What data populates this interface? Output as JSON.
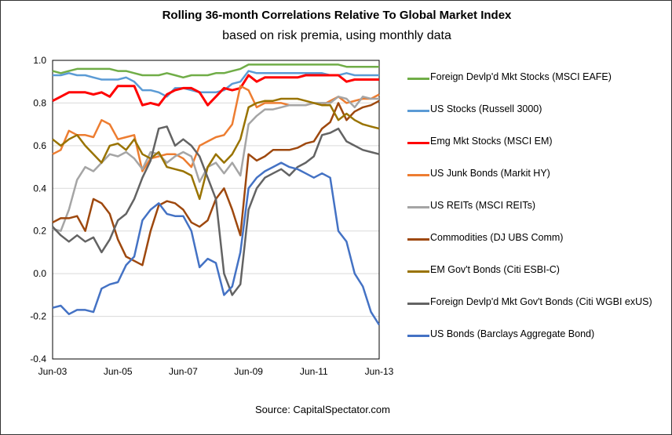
{
  "chart_data": {
    "type": "line",
    "title": "Rolling 36-month Correlations Relative To Global Market Index",
    "subtitle": "based on risk premia, using monthly data",
    "source": "Source: CapitalSpectator.com",
    "ylim": [
      -0.4,
      1.0
    ],
    "yticks": [
      "1.0",
      "0.8",
      "0.6",
      "0.4",
      "0.2",
      "0.0",
      "-0.2",
      "-0.4"
    ],
    "ytick_values": [
      1.0,
      0.8,
      0.6,
      0.4,
      0.2,
      0.0,
      -0.2,
      -0.4
    ],
    "xticks": [
      "Jun-03",
      "Jun-05",
      "Jun-07",
      "Jun-09",
      "Jun-11",
      "Jun-13"
    ],
    "xtick_dates": [
      "2003-06",
      "2005-06",
      "2007-06",
      "2009-06",
      "2011-06",
      "2013-06"
    ],
    "xlim": [
      "2003-06",
      "2013-06"
    ],
    "grid": "horizontal",
    "legend_position": "right",
    "x": [
      "2003-06",
      "2003-09",
      "2003-12",
      "2004-03",
      "2004-06",
      "2004-09",
      "2004-12",
      "2005-03",
      "2005-06",
      "2005-09",
      "2005-12",
      "2006-03",
      "2006-06",
      "2006-09",
      "2006-12",
      "2007-03",
      "2007-06",
      "2007-09",
      "2007-12",
      "2008-03",
      "2008-06",
      "2008-09",
      "2008-12",
      "2009-03",
      "2009-06",
      "2009-09",
      "2009-12",
      "2010-03",
      "2010-06",
      "2010-09",
      "2010-12",
      "2011-03",
      "2011-06",
      "2011-09",
      "2011-12",
      "2012-03",
      "2012-06",
      "2012-09",
      "2012-12",
      "2013-03",
      "2013-06"
    ],
    "series": [
      {
        "name": "Foreign Devlp'd Mkt Stocks (MSCI EAFE)",
        "color": "#70ad47",
        "values": [
          0.95,
          0.94,
          0.95,
          0.96,
          0.96,
          0.96,
          0.96,
          0.96,
          0.95,
          0.95,
          0.94,
          0.93,
          0.93,
          0.93,
          0.94,
          0.93,
          0.92,
          0.93,
          0.93,
          0.93,
          0.94,
          0.94,
          0.95,
          0.96,
          0.98,
          0.98,
          0.98,
          0.98,
          0.98,
          0.98,
          0.98,
          0.98,
          0.98,
          0.98,
          0.98,
          0.98,
          0.97,
          0.97,
          0.97,
          0.97,
          0.97
        ]
      },
      {
        "name": "US Stocks (Russell 3000)",
        "color": "#5b9bd5",
        "values": [
          0.93,
          0.93,
          0.94,
          0.93,
          0.93,
          0.92,
          0.91,
          0.91,
          0.91,
          0.92,
          0.9,
          0.86,
          0.86,
          0.85,
          0.83,
          0.87,
          0.87,
          0.86,
          0.85,
          0.85,
          0.85,
          0.86,
          0.89,
          0.9,
          0.95,
          0.94,
          0.94,
          0.94,
          0.94,
          0.94,
          0.94,
          0.94,
          0.94,
          0.94,
          0.93,
          0.93,
          0.94,
          0.93,
          0.93,
          0.93,
          0.93
        ]
      },
      {
        "name": "Emg Mkt Stocks (MSCI EM)",
        "color": "#ff0000",
        "values": [
          0.81,
          0.83,
          0.85,
          0.85,
          0.85,
          0.84,
          0.85,
          0.83,
          0.88,
          0.88,
          0.88,
          0.79,
          0.8,
          0.79,
          0.84,
          0.86,
          0.87,
          0.87,
          0.85,
          0.79,
          0.83,
          0.87,
          0.86,
          0.87,
          0.93,
          0.9,
          0.92,
          0.92,
          0.92,
          0.92,
          0.92,
          0.93,
          0.93,
          0.93,
          0.93,
          0.93,
          0.9,
          0.91,
          0.91,
          0.91,
          0.91
        ]
      },
      {
        "name": "US Junk Bonds (Markit HY)",
        "color": "#ed7d31",
        "values": [
          0.56,
          0.58,
          0.67,
          0.65,
          0.65,
          0.64,
          0.72,
          0.7,
          0.63,
          0.64,
          0.65,
          0.48,
          0.54,
          0.55,
          0.56,
          0.56,
          0.54,
          0.5,
          0.6,
          0.62,
          0.64,
          0.65,
          0.7,
          0.88,
          0.86,
          0.78,
          0.8,
          0.8,
          0.8,
          0.79,
          0.79,
          0.79,
          0.8,
          0.79,
          0.81,
          0.83,
          0.8,
          0.81,
          0.82,
          0.82,
          0.84
        ]
      },
      {
        "name": "US REITs (MSCI REITs)",
        "color": "#a5a5a5",
        "values": [
          0.21,
          0.2,
          0.3,
          0.44,
          0.5,
          0.48,
          0.52,
          0.56,
          0.55,
          0.57,
          0.54,
          0.49,
          0.57,
          0.56,
          0.52,
          0.55,
          0.57,
          0.55,
          0.43,
          0.5,
          0.52,
          0.47,
          0.52,
          0.46,
          0.7,
          0.74,
          0.77,
          0.77,
          0.78,
          0.79,
          0.79,
          0.79,
          0.8,
          0.8,
          0.8,
          0.83,
          0.82,
          0.78,
          0.83,
          0.82,
          0.82
        ]
      },
      {
        "name": "Commodities (DJ UBS Comm)",
        "color": "#9e480e",
        "values": [
          0.24,
          0.26,
          0.26,
          0.27,
          0.2,
          0.35,
          0.33,
          0.28,
          0.16,
          0.08,
          0.06,
          0.04,
          0.2,
          0.32,
          0.34,
          0.33,
          0.3,
          0.24,
          0.22,
          0.25,
          0.35,
          0.4,
          0.3,
          0.18,
          0.56,
          0.53,
          0.55,
          0.58,
          0.58,
          0.58,
          0.59,
          0.61,
          0.62,
          0.68,
          0.71,
          0.8,
          0.72,
          0.76,
          0.78,
          0.79,
          0.81
        ]
      },
      {
        "name": "EM Gov't Bonds (Citi ESBI-C)",
        "color": "#997300",
        "values": [
          0.63,
          0.6,
          0.63,
          0.65,
          0.6,
          0.56,
          0.52,
          0.6,
          0.61,
          0.58,
          0.63,
          0.56,
          0.54,
          0.57,
          0.5,
          0.49,
          0.48,
          0.46,
          0.35,
          0.5,
          0.56,
          0.52,
          0.56,
          0.63,
          0.78,
          0.8,
          0.81,
          0.81,
          0.82,
          0.82,
          0.82,
          0.81,
          0.8,
          0.79,
          0.79,
          0.72,
          0.75,
          0.72,
          0.7,
          0.69,
          0.68
        ]
      },
      {
        "name": "Foreign Devlp'd Mkt Gov't Bonds (Citi WGBI exUS)",
        "color": "#636363",
        "values": [
          0.22,
          0.18,
          0.15,
          0.18,
          0.15,
          0.17,
          0.1,
          0.16,
          0.25,
          0.28,
          0.35,
          0.45,
          0.53,
          0.68,
          0.69,
          0.6,
          0.63,
          0.6,
          0.55,
          0.45,
          0.35,
          0.0,
          -0.1,
          -0.05,
          0.3,
          0.4,
          0.45,
          0.47,
          0.49,
          0.46,
          0.5,
          0.52,
          0.55,
          0.65,
          0.66,
          0.68,
          0.62,
          0.6,
          0.58,
          0.57,
          0.56
        ]
      },
      {
        "name": "US Bonds (Barclays Aggregate Bond)",
        "color": "#4472c4",
        "values": [
          -0.16,
          -0.15,
          -0.19,
          -0.17,
          -0.17,
          -0.18,
          -0.07,
          -0.05,
          -0.04,
          0.04,
          0.08,
          0.25,
          0.3,
          0.33,
          0.28,
          0.27,
          0.27,
          0.2,
          0.03,
          0.07,
          0.05,
          -0.1,
          -0.06,
          0.1,
          0.4,
          0.45,
          0.48,
          0.5,
          0.52,
          0.5,
          0.49,
          0.47,
          0.45,
          0.47,
          0.45,
          0.2,
          0.15,
          0.0,
          -0.06,
          -0.18,
          -0.24
        ]
      }
    ]
  }
}
